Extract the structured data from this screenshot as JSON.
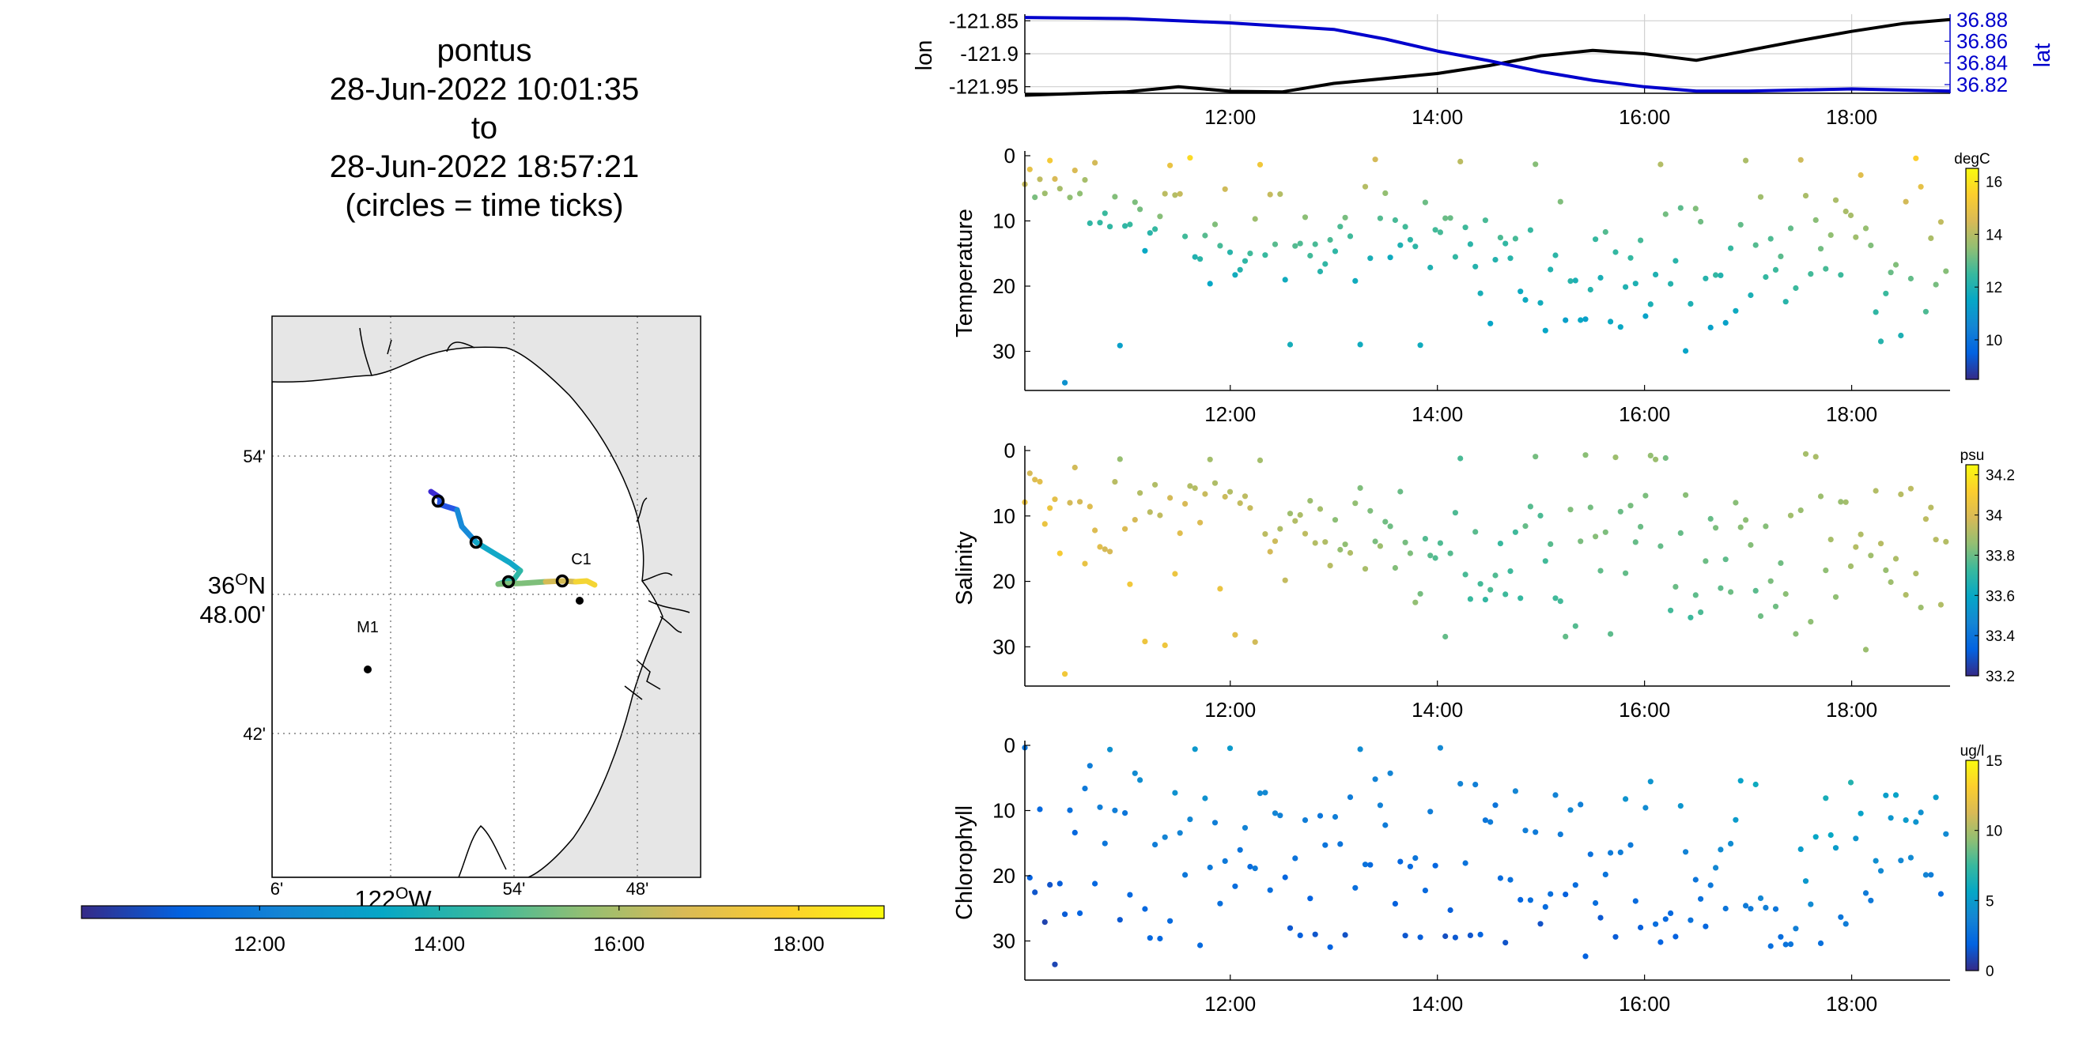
{
  "title": {
    "lines": [
      "pontus",
      "28-Jun-2022 10:01:35",
      "to",
      "28-Jun-2022 18:57:21",
      "(circles = time ticks)"
    ]
  },
  "colors": {
    "lon_line": "#000000",
    "lat_line": "#0000cc",
    "lat_axis": "#0000cc",
    "land_fill": "#e6e6e6",
    "water_fill": "#ffffff",
    "parula": [
      "#352a87",
      "#0363e1",
      "#1485d4",
      "#06a7c6",
      "#38b99e",
      "#92bf73",
      "#d9ba56",
      "#fcce2e",
      "#f9fb0e"
    ]
  },
  "map": {
    "lat_labels": [
      "54'",
      "36°N\n48.00'",
      "42'"
    ],
    "lon_labels": [
      "6'",
      "54'",
      "48'"
    ],
    "lon_title": "122°W",
    "stations": [
      {
        "name": "M1"
      },
      {
        "name": "C1"
      }
    ],
    "track_start": "10:01",
    "track_end": "18:57"
  },
  "time_colorbar": {
    "tick_labels": [
      "12:00",
      "14:00",
      "16:00",
      "18:00"
    ]
  },
  "chart_data": [
    {
      "type": "line",
      "x_range": [
        "10:01",
        "18:57"
      ],
      "x_ticks": [
        "12:00",
        "14:00",
        "16:00",
        "18:00"
      ],
      "ylabel_left": "lon",
      "ylabel_right": "lat",
      "ylim_left": [
        -121.96,
        -121.84
      ],
      "ylim_right": [
        36.812,
        36.885
      ],
      "yticks_left": [
        "-121.85",
        "-121.9",
        "-121.95"
      ],
      "yticks_right": [
        "36.88",
        "36.86",
        "36.84",
        "36.82"
      ],
      "grid": true,
      "series": [
        {
          "name": "lon",
          "axis": "left",
          "x": [
            "10:01",
            "11:00",
            "11:30",
            "12:00",
            "12:30",
            "13:00",
            "14:00",
            "14:30",
            "15:00",
            "15:30",
            "16:00",
            "16:30",
            "17:00",
            "17:30",
            "18:00",
            "18:30",
            "18:57"
          ],
          "y": [
            -121.963,
            -121.958,
            -121.95,
            -121.957,
            -121.958,
            -121.945,
            -121.93,
            -121.918,
            -121.903,
            -121.895,
            -121.9,
            -121.91,
            -121.895,
            -121.88,
            -121.866,
            -121.854,
            -121.848
          ]
        },
        {
          "name": "lat",
          "axis": "right",
          "x": [
            "10:01",
            "11:00",
            "12:00",
            "13:00",
            "13:30",
            "14:00",
            "14:30",
            "15:00",
            "15:30",
            "16:00",
            "16:30",
            "17:00",
            "18:00",
            "18:57"
          ],
          "y": [
            36.882,
            36.881,
            36.877,
            36.871,
            36.862,
            36.851,
            36.842,
            36.832,
            36.824,
            36.818,
            36.814,
            36.814,
            36.816,
            36.814
          ]
        }
      ]
    },
    {
      "type": "scatter",
      "ylabel": "Temperature",
      "yticks": [
        "0",
        "10",
        "20",
        "30"
      ],
      "ylim": [
        36,
        0
      ],
      "x_ticks": [
        "12:00",
        "14:00",
        "16:00",
        "18:00"
      ],
      "colorbar": {
        "unit": "degC",
        "ticks": [
          "16",
          "14",
          "12",
          "10"
        ],
        "range": [
          8.5,
          16.5
        ]
      },
      "profiles": [
        {
          "t": "10:20",
          "top": 2,
          "bottom": 12,
          "floor": 35,
          "ctop": 15.8,
          "cbot": 11
        },
        {
          "t": "10:50",
          "top": 5,
          "bottom": 14,
          "floor": 30,
          "ctop": 14.5,
          "cbot": 11.5
        },
        {
          "t": "11:40",
          "top": 5,
          "bottom": 18,
          "floor": 30,
          "ctop": 15.9,
          "cbot": 11.5
        },
        {
          "t": "12:40",
          "top": 6,
          "bottom": 20,
          "floor": 29,
          "ctop": 14.8,
          "cbot": 11.8
        },
        {
          "t": "13:40",
          "top": 6,
          "bottom": 15,
          "floor": 30,
          "ctop": 14.5,
          "cbot": 11.8
        },
        {
          "t": "14:40",
          "top": 8,
          "bottom": 25,
          "floor": 30,
          "ctop": 13.5,
          "cbot": 11.5
        },
        {
          "t": "15:40",
          "top": 6,
          "bottom": 28,
          "floor": 30,
          "ctop": 14,
          "cbot": 11.2
        },
        {
          "t": "16:40",
          "top": 7,
          "bottom": 28,
          "floor": 30,
          "ctop": 13.8,
          "cbot": 11.3
        },
        {
          "t": "17:40",
          "top": 5,
          "bottom": 26,
          "floor": 29,
          "ctop": 14.5,
          "cbot": 11.8
        },
        {
          "t": "18:40",
          "top": 3,
          "bottom": 28,
          "floor": 28,
          "ctop": 15.5,
          "cbot": 12
        }
      ]
    },
    {
      "type": "scatter",
      "ylabel": "Salinity",
      "yticks": [
        "0",
        "10",
        "20",
        "30"
      ],
      "ylim": [
        36,
        0
      ],
      "x_ticks": [
        "12:00",
        "14:00",
        "16:00",
        "18:00"
      ],
      "colorbar": {
        "unit": "psu",
        "ticks": [
          "34.2",
          "34",
          "33.8",
          "33.6",
          "33.4",
          "33.2"
        ],
        "range": [
          33.2,
          34.25
        ]
      },
      "profiles": [
        {
          "t": "10:20",
          "top": 0,
          "bottom": 15,
          "floor": 35,
          "ctop": 33.95,
          "cbot": 34.1
        },
        {
          "t": "10:50",
          "top": 5,
          "bottom": 20,
          "floor": 30,
          "ctop": 33.85,
          "cbot": 34.05
        },
        {
          "t": "11:40",
          "top": 5,
          "bottom": 18,
          "floor": 29,
          "ctop": 33.9,
          "cbot": 34.05
        },
        {
          "t": "12:40",
          "top": 6,
          "bottom": 18,
          "floor": 29,
          "ctop": 33.85,
          "cbot": 33.95
        },
        {
          "t": "13:40",
          "top": 6,
          "bottom": 20,
          "floor": 29,
          "ctop": 33.75,
          "cbot": 33.85
        },
        {
          "t": "14:40",
          "top": 8,
          "bottom": 26,
          "floor": 29,
          "ctop": 33.8,
          "cbot": 33.7
        },
        {
          "t": "15:40",
          "top": 6,
          "bottom": 24,
          "floor": 28,
          "ctop": 33.85,
          "cbot": 33.8
        },
        {
          "t": "16:40",
          "top": 7,
          "bottom": 25,
          "floor": 29,
          "ctop": 33.85,
          "cbot": 33.75
        },
        {
          "t": "17:40",
          "top": 5,
          "bottom": 27,
          "floor": 29,
          "ctop": 33.9,
          "cbot": 33.85
        },
        {
          "t": "18:40",
          "top": 4,
          "bottom": 24,
          "floor": 30,
          "ctop": 33.95,
          "cbot": 33.9
        }
      ]
    },
    {
      "type": "scatter",
      "ylabel": "Chlorophyll",
      "yticks": [
        "0",
        "10",
        "20",
        "30"
      ],
      "ylim": [
        36,
        0
      ],
      "x_ticks": [
        "12:00",
        "14:00",
        "16:00",
        "18:00"
      ],
      "colorbar": {
        "unit": "ug/l",
        "ticks": [
          "15",
          "10",
          "5",
          "0"
        ],
        "range": [
          0,
          15
        ]
      },
      "profiles": [
        {
          "t": "10:20",
          "top": 0,
          "bottom": 30,
          "floor": 34,
          "ctop": 3,
          "cbot": 1
        },
        {
          "t": "10:50",
          "top": 4,
          "bottom": 30,
          "floor": 30,
          "ctop": 4,
          "cbot": 1.5
        },
        {
          "t": "11:40",
          "top": 4,
          "bottom": 30,
          "floor": 30,
          "ctop": 5,
          "cbot": 2
        },
        {
          "t": "12:40",
          "top": 5,
          "bottom": 30,
          "floor": 30,
          "ctop": 4,
          "cbot": 1.5
        },
        {
          "t": "13:40",
          "top": 5,
          "bottom": 30,
          "floor": 30,
          "ctop": 4,
          "cbot": 1.5
        },
        {
          "t": "14:40",
          "top": 5,
          "bottom": 30,
          "floor": 30,
          "ctop": 4,
          "cbot": 1.5
        },
        {
          "t": "15:40",
          "top": 5,
          "bottom": 30,
          "floor": 30,
          "ctop": 5,
          "cbot": 1.5
        },
        {
          "t": "16:40",
          "top": 5,
          "bottom": 30,
          "floor": 30,
          "ctop": 6,
          "cbot": 2
        },
        {
          "t": "17:40",
          "top": 5,
          "bottom": 30,
          "floor": 30,
          "ctop": 8,
          "cbot": 3
        },
        {
          "t": "18:40",
          "top": 4,
          "bottom": 30,
          "floor": 30,
          "ctop": 6,
          "cbot": 2
        }
      ]
    }
  ]
}
